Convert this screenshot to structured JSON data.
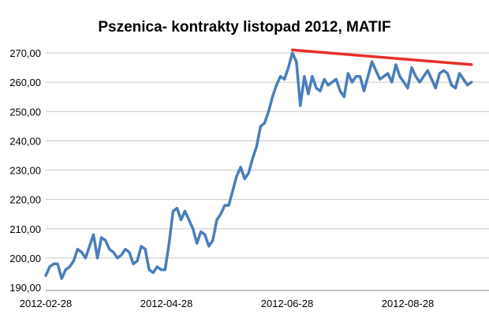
{
  "chart_data": {
    "type": "line",
    "title": "Pszenica- kontrakty listopad 2012, MATIF",
    "xlabel": "",
    "ylabel": "",
    "ylim": [
      190,
      270
    ],
    "y_ticks": [
      "190,00",
      "200,00",
      "210,00",
      "220,00",
      "230,00",
      "240,00",
      "250,00",
      "260,00",
      "270,00"
    ],
    "x_ticks": [
      "2012-02-28",
      "2012-04-28",
      "2012-06-28",
      "2012-08-28"
    ],
    "grid": true,
    "legend": "none",
    "series": [
      {
        "color": "#4a7ebb",
        "x": [
          "2012-02-28",
          "2012-03-01",
          "2012-03-03",
          "2012-03-05",
          "2012-03-07",
          "2012-03-09",
          "2012-03-11",
          "2012-03-13",
          "2012-03-15",
          "2012-03-17",
          "2012-03-19",
          "2012-03-21",
          "2012-03-23",
          "2012-03-25",
          "2012-03-27",
          "2012-03-29",
          "2012-03-31",
          "2012-04-02",
          "2012-04-04",
          "2012-04-06",
          "2012-04-08",
          "2012-04-10",
          "2012-04-12",
          "2012-04-14",
          "2012-04-16",
          "2012-04-18",
          "2012-04-20",
          "2012-04-22",
          "2012-04-24",
          "2012-04-26",
          "2012-04-28",
          "2012-04-30",
          "2012-05-02",
          "2012-05-04",
          "2012-05-06",
          "2012-05-08",
          "2012-05-10",
          "2012-05-12",
          "2012-05-14",
          "2012-05-16",
          "2012-05-18",
          "2012-05-20",
          "2012-05-22",
          "2012-05-24",
          "2012-05-26",
          "2012-05-28",
          "2012-05-30",
          "2012-06-01",
          "2012-06-03",
          "2012-06-05",
          "2012-06-07",
          "2012-06-09",
          "2012-06-11",
          "2012-06-13",
          "2012-06-15",
          "2012-06-17",
          "2012-06-19",
          "2012-06-21",
          "2012-06-23",
          "2012-06-25",
          "2012-06-27",
          "2012-06-29",
          "2012-07-01",
          "2012-07-03",
          "2012-07-05",
          "2012-07-07",
          "2012-07-09",
          "2012-07-11",
          "2012-07-13",
          "2012-07-15",
          "2012-07-17",
          "2012-07-19",
          "2012-07-21",
          "2012-07-23",
          "2012-07-25",
          "2012-07-27",
          "2012-07-29",
          "2012-07-31",
          "2012-08-02",
          "2012-08-04",
          "2012-08-06",
          "2012-08-08",
          "2012-08-10",
          "2012-08-12",
          "2012-08-14",
          "2012-08-16",
          "2012-08-18",
          "2012-08-20",
          "2012-08-22",
          "2012-08-24",
          "2012-08-26",
          "2012-08-28",
          "2012-08-30",
          "2012-09-01",
          "2012-09-03",
          "2012-09-05",
          "2012-09-07",
          "2012-09-09",
          "2012-09-11",
          "2012-09-13",
          "2012-09-15",
          "2012-09-17",
          "2012-09-19",
          "2012-09-21",
          "2012-09-23",
          "2012-09-25",
          "2012-09-27",
          "2012-09-29"
        ],
        "values": [
          194,
          197,
          198,
          198,
          193,
          196,
          197,
          199,
          203,
          202,
          200,
          204,
          208,
          200,
          207,
          206,
          203,
          202,
          200,
          201,
          203,
          202,
          198,
          199,
          204,
          203,
          196,
          195,
          197,
          196,
          196,
          205,
          216,
          217,
          213,
          216,
          213,
          210,
          205,
          209,
          208,
          204,
          206,
          213,
          215,
          218,
          218,
          223,
          228,
          231,
          227,
          229,
          234,
          238,
          245,
          246,
          250,
          255,
          259,
          262,
          261,
          265,
          270,
          267,
          252,
          262,
          256,
          262,
          258,
          257,
          261,
          259,
          260,
          261,
          257,
          255,
          263,
          260,
          262,
          262,
          257,
          262,
          267,
          264,
          261,
          262,
          263,
          260,
          266,
          262,
          260,
          258,
          265,
          262,
          260,
          262,
          264,
          261,
          258,
          263,
          264,
          263,
          259,
          258,
          263,
          261,
          259,
          260
        ]
      }
    ],
    "trendline": {
      "color": "#e8302a",
      "x": [
        "2012-07-01",
        "2012-09-29"
      ],
      "values": [
        271,
        266
      ]
    }
  }
}
